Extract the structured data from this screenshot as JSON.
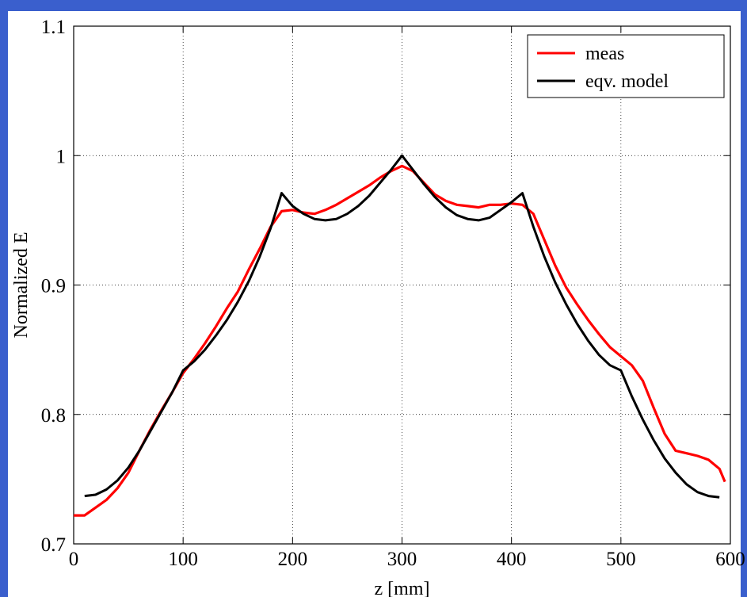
{
  "chart_data": {
    "type": "line",
    "xlabel": "z [mm]",
    "ylabel": "Normalized E",
    "xlim": [
      0,
      600
    ],
    "ylim": [
      0.7,
      1.1
    ],
    "x_ticks": [
      "0",
      "100",
      "200",
      "300",
      "400",
      "500",
      "600"
    ],
    "y_ticks": [
      "0.7",
      "0.8",
      "0.9",
      "1",
      "1.1"
    ],
    "grid": true,
    "legend_position": "top-right",
    "series": [
      {
        "name": "meas",
        "color": "#ff0000",
        "x": [
          0,
          10,
          20,
          30,
          40,
          50,
          60,
          70,
          80,
          90,
          100,
          110,
          120,
          130,
          140,
          150,
          160,
          170,
          180,
          190,
          200,
          210,
          220,
          230,
          240,
          250,
          260,
          270,
          280,
          290,
          300,
          310,
          320,
          330,
          340,
          350,
          360,
          370,
          380,
          390,
          400,
          410,
          420,
          430,
          440,
          450,
          460,
          470,
          480,
          490,
          500,
          510,
          520,
          530,
          540,
          550,
          560,
          570,
          580,
          590,
          595
        ],
        "y": [
          0.722,
          0.722,
          0.728,
          0.734,
          0.743,
          0.755,
          0.772,
          0.788,
          0.803,
          0.817,
          0.832,
          0.843,
          0.855,
          0.868,
          0.882,
          0.895,
          0.912,
          0.928,
          0.945,
          0.957,
          0.958,
          0.956,
          0.955,
          0.958,
          0.962,
          0.967,
          0.972,
          0.977,
          0.983,
          0.988,
          0.992,
          0.988,
          0.979,
          0.97,
          0.965,
          0.962,
          0.961,
          0.96,
          0.962,
          0.962,
          0.963,
          0.962,
          0.955,
          0.935,
          0.915,
          0.898,
          0.885,
          0.873,
          0.862,
          0.852,
          0.845,
          0.838,
          0.826,
          0.805,
          0.785,
          0.772,
          0.77,
          0.768,
          0.765,
          0.758,
          0.748
        ]
      },
      {
        "name": "eqv. model",
        "color": "#000000",
        "x": [
          10,
          20,
          30,
          40,
          50,
          60,
          70,
          80,
          90,
          100,
          110,
          120,
          130,
          140,
          150,
          160,
          170,
          180,
          190,
          200,
          210,
          220,
          230,
          240,
          250,
          260,
          270,
          280,
          290,
          300,
          310,
          320,
          330,
          340,
          350,
          360,
          370,
          380,
          390,
          400,
          410,
          420,
          430,
          440,
          450,
          460,
          470,
          480,
          490,
          500,
          510,
          520,
          530,
          540,
          550,
          560,
          570,
          580,
          590
        ],
        "y": [
          0.737,
          0.738,
          0.742,
          0.749,
          0.759,
          0.772,
          0.787,
          0.802,
          0.817,
          0.834,
          0.841,
          0.85,
          0.861,
          0.873,
          0.887,
          0.903,
          0.922,
          0.944,
          0.971,
          0.961,
          0.955,
          0.951,
          0.95,
          0.951,
          0.955,
          0.961,
          0.969,
          0.979,
          0.989,
          1.0,
          0.989,
          0.978,
          0.968,
          0.96,
          0.954,
          0.951,
          0.95,
          0.952,
          0.958,
          0.964,
          0.971,
          0.945,
          0.922,
          0.902,
          0.885,
          0.87,
          0.857,
          0.846,
          0.838,
          0.834,
          0.814,
          0.796,
          0.78,
          0.766,
          0.755,
          0.746,
          0.74,
          0.737,
          0.736
        ]
      }
    ]
  }
}
